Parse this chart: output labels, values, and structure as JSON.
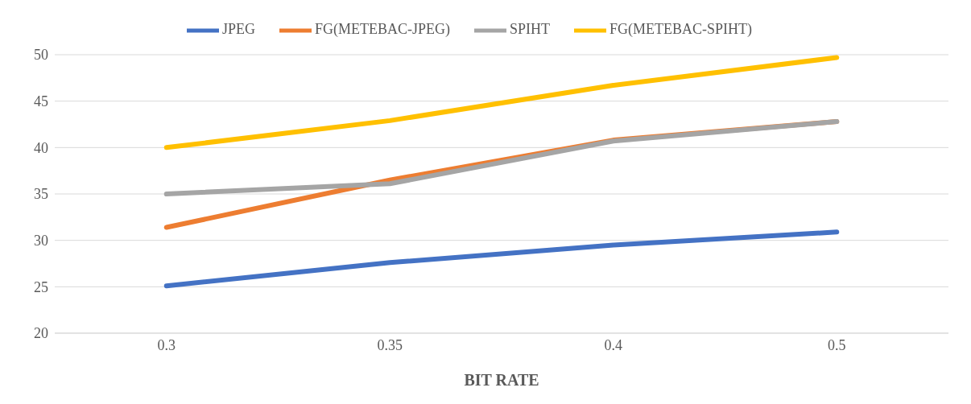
{
  "chart_data": {
    "type": "line",
    "xlabel": "BIT RATE",
    "categories": [
      "0.3",
      "0.35",
      "0.4",
      "0.5"
    ],
    "series": [
      {
        "name": "JPEG",
        "color": "#4472c4",
        "values": [
          25.1,
          27.6,
          29.5,
          30.9
        ]
      },
      {
        "name": "FG(METEBAC-JPEG)",
        "color": "#ed7d31",
        "values": [
          31.4,
          36.5,
          40.8,
          42.8
        ]
      },
      {
        "name": "SPIHT",
        "color": "#a5a5a5",
        "values": [
          35.0,
          36.1,
          40.7,
          42.8
        ]
      },
      {
        "name": "FG(METEBAC-SPIHT)",
        "color": "#ffc000",
        "values": [
          40.0,
          42.9,
          46.7,
          49.7
        ]
      }
    ],
    "ylim": [
      20,
      50
    ],
    "yticks": [
      20,
      25,
      30,
      35,
      40,
      45,
      50
    ],
    "grid": "y",
    "legend": "top",
    "marker": "none",
    "line_style": "solid"
  }
}
